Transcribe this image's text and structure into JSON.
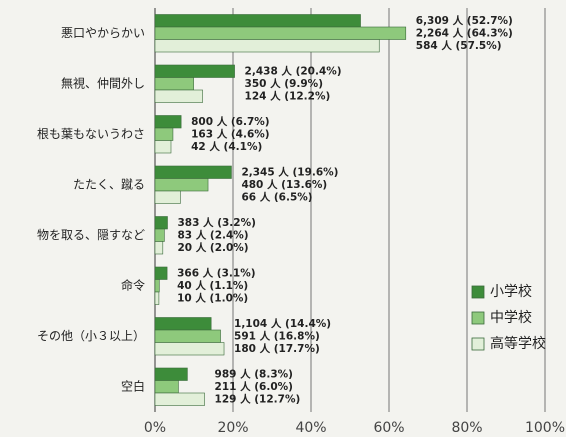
{
  "chart_data": {
    "type": "barh",
    "categories": [
      "悪口やからかい",
      "無視、仲間外し",
      "根も葉もないうわさ",
      "たたく、蹴る",
      "物を取る、隠すなど",
      "命令",
      "その他（小３以上）",
      "空白"
    ],
    "series": [
      {
        "name": "小学校",
        "color": "#3d8c3a",
        "values": [
          52.7,
          20.4,
          6.7,
          19.6,
          3.2,
          3.1,
          14.4,
          8.3
        ],
        "value_labels": [
          "6,309 人 (52.7%)",
          "2,438 人 (20.4%)",
          "800 人 (6.7%)",
          "2,345 人 (19.6%)",
          "383 人 (3.2%)",
          "366 人 (3.1%)",
          "1,104 人 (14.4%)",
          "989 人 (8.3%)"
        ]
      },
      {
        "name": "中学校",
        "color": "#8ec97c",
        "values": [
          64.3,
          9.9,
          4.6,
          13.6,
          2.4,
          1.1,
          16.8,
          6.0
        ],
        "value_labels": [
          "2,264 人 (64.3%)",
          "350 人 (9.9%)",
          "163 人 (4.6%)",
          "480 人 (13.6%)",
          "83 人 (2.4%)",
          "40 人 (1.1%)",
          "591 人 (16.8%)",
          "211 人 (6.0%)"
        ]
      },
      {
        "name": "高等学校",
        "color": "#e2efd9",
        "values": [
          57.5,
          12.2,
          4.1,
          6.5,
          2.0,
          1.0,
          17.7,
          12.7
        ],
        "value_labels": [
          "584 人 (57.5%)",
          "124 人 (12.2%)",
          "42 人 (4.1%)",
          "66 人 (6.5%)",
          "20 人 (2.0%)",
          "10 人 (1.0%)",
          "180 人 (17.7%)",
          "129 人 (12.7%)"
        ]
      }
    ],
    "xlim": [
      0,
      100
    ],
    "xticks": [
      {
        "value": 0,
        "label": "0%"
      },
      {
        "value": 20,
        "label": "20%"
      },
      {
        "value": 40,
        "label": "40%"
      },
      {
        "value": 60,
        "label": "60%"
      },
      {
        "value": 80,
        "label": "80%"
      },
      {
        "value": 100,
        "label": "100%"
      }
    ],
    "grid": true
  }
}
